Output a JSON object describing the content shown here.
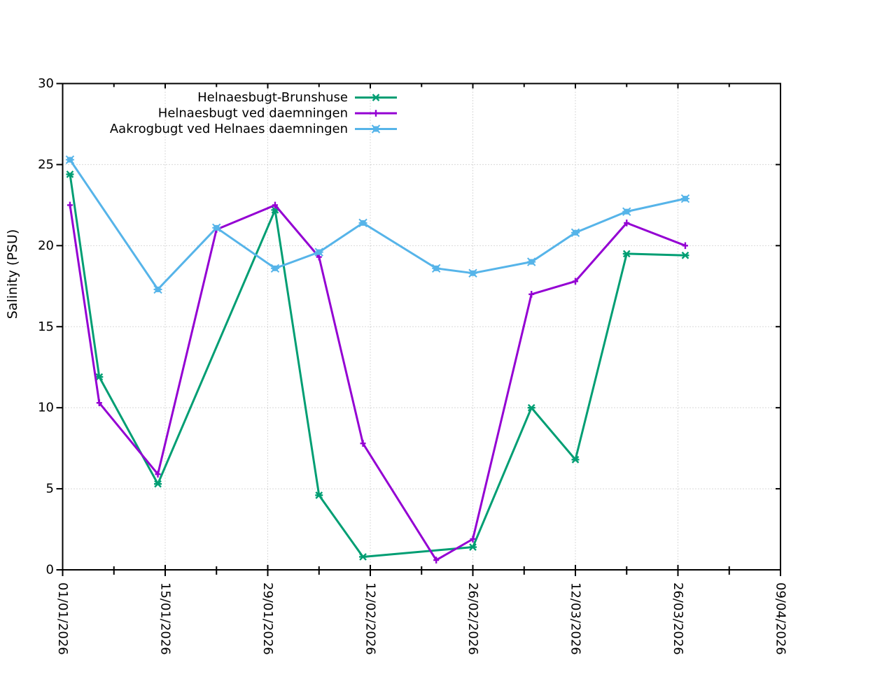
{
  "chart_data": {
    "type": "line",
    "title": "",
    "xlabel": "",
    "ylabel": "Salinity (PSU)",
    "ylim": [
      0,
      30
    ],
    "yticks": [
      0,
      5,
      10,
      15,
      20,
      25,
      30
    ],
    "x_total_days": 98,
    "x_minor_tick_interval_days": 7,
    "grid": "dotted",
    "legend_position": "top-inside",
    "x_major_ticks": [
      {
        "label": "01/01/2026",
        "day": 0
      },
      {
        "label": "15/01/2026",
        "day": 14
      },
      {
        "label": "29/01/2026",
        "day": 28
      },
      {
        "label": "12/02/2026",
        "day": 42
      },
      {
        "label": "26/02/2026",
        "day": 56
      },
      {
        "label": "12/03/2026",
        "day": 70
      },
      {
        "label": "26/03/2026",
        "day": 84
      },
      {
        "label": "09/04/2026",
        "day": 98
      }
    ],
    "series": [
      {
        "name": "Helnaesbugt-Brunshuse",
        "color": "#009E73",
        "marker": "asterisk",
        "points": [
          {
            "date": "02/01/2026",
            "day": 1,
            "value": 24.4
          },
          {
            "date": "06/01/2026",
            "day": 5,
            "value": 11.9
          },
          {
            "date": "14/01/2026",
            "day": 13,
            "value": 5.3
          },
          {
            "date": "30/01/2026",
            "day": 29,
            "value": 22.2
          },
          {
            "date": "05/02/2026",
            "day": 35,
            "value": 4.6
          },
          {
            "date": "11/02/2026",
            "day": 41,
            "value": 0.8
          },
          {
            "date": "26/02/2026",
            "day": 56,
            "value": 1.4
          },
          {
            "date": "06/03/2026",
            "day": 64,
            "value": 10.0
          },
          {
            "date": "12/03/2026",
            "day": 70,
            "value": 6.8
          },
          {
            "date": "19/03/2026",
            "day": 77,
            "value": 19.5
          },
          {
            "date": "27/03/2026",
            "day": 85,
            "value": 19.4
          }
        ]
      },
      {
        "name": "Helnaesbugt ved daemningen",
        "color": "#9400D3",
        "marker": "plus",
        "points": [
          {
            "date": "02/01/2026",
            "day": 1,
            "value": 22.5
          },
          {
            "date": "06/01/2026",
            "day": 5,
            "value": 10.3
          },
          {
            "date": "14/01/2026",
            "day": 13,
            "value": 5.9
          },
          {
            "date": "22/01/2026",
            "day": 21,
            "value": 21.0
          },
          {
            "date": "30/01/2026",
            "day": 29,
            "value": 22.5
          },
          {
            "date": "05/02/2026",
            "day": 35,
            "value": 19.3
          },
          {
            "date": "11/02/2026",
            "day": 41,
            "value": 7.8
          },
          {
            "date": "21/02/2026",
            "day": 51,
            "value": 0.6
          },
          {
            "date": "26/02/2026",
            "day": 56,
            "value": 1.9
          },
          {
            "date": "06/03/2026",
            "day": 64,
            "value": 17.0
          },
          {
            "date": "12/03/2026",
            "day": 70,
            "value": 17.8
          },
          {
            "date": "19/03/2026",
            "day": 77,
            "value": 21.4
          },
          {
            "date": "27/03/2026",
            "day": 85,
            "value": 20.0
          }
        ]
      },
      {
        "name": "Aakrogbugt ved Helnaes daemningen",
        "color": "#56B4E9",
        "marker": "filled-square",
        "points": [
          {
            "date": "02/01/2026",
            "day": 1,
            "value": 25.3
          },
          {
            "date": "14/01/2026",
            "day": 13,
            "value": 17.3
          },
          {
            "date": "22/01/2026",
            "day": 21,
            "value": 21.1
          },
          {
            "date": "30/01/2026",
            "day": 29,
            "value": 18.6
          },
          {
            "date": "05/02/2026",
            "day": 35,
            "value": 19.6
          },
          {
            "date": "11/02/2026",
            "day": 41,
            "value": 21.4
          },
          {
            "date": "21/02/2026",
            "day": 51,
            "value": 18.6
          },
          {
            "date": "26/02/2026",
            "day": 56,
            "value": 18.3
          },
          {
            "date": "06/03/2026",
            "day": 64,
            "value": 19.0
          },
          {
            "date": "12/03/2026",
            "day": 70,
            "value": 20.8
          },
          {
            "date": "19/03/2026",
            "day": 77,
            "value": 22.1
          },
          {
            "date": "27/03/2026",
            "day": 85,
            "value": 22.9
          }
        ]
      }
    ],
    "colors": {
      "axis": "#000000",
      "grid": "#b3b3b3",
      "background": "#ffffff",
      "text": "#000000"
    }
  }
}
